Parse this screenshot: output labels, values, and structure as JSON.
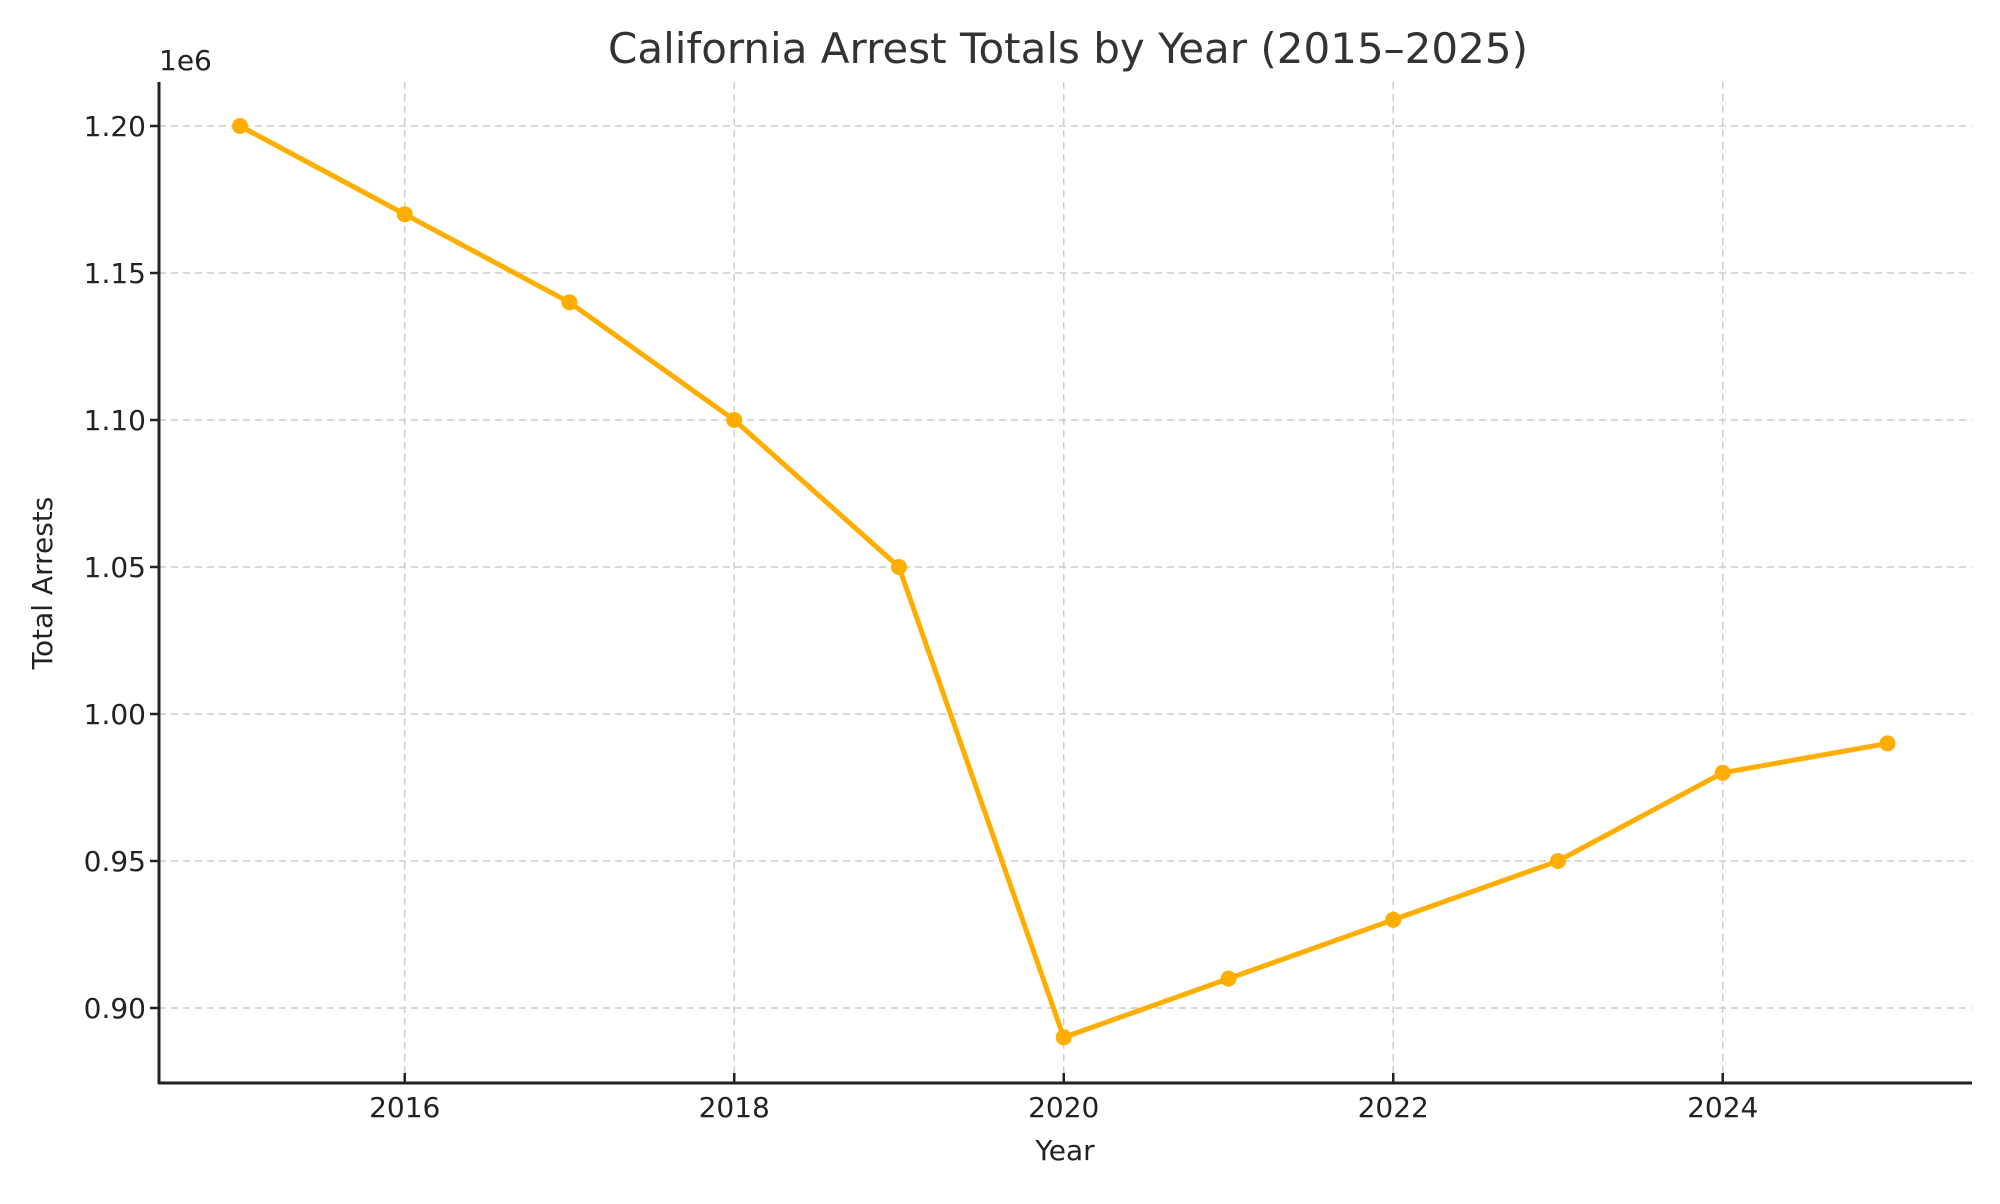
{
  "chart_data": {
    "type": "line",
    "title": "California Arrest Totals by Year (2015–2025)",
    "xlabel": "Year",
    "ylabel": "Total Arrests",
    "y_offset_label": "1e6",
    "x": [
      2015,
      2016,
      2017,
      2018,
      2019,
      2020,
      2021,
      2022,
      2023,
      2024,
      2025
    ],
    "series": [
      {
        "name": "Total Arrests",
        "values": [
          1200000,
          1170000,
          1140000,
          1100000,
          1050000,
          890000,
          910000,
          930000,
          950000,
          980000,
          990000
        ],
        "color": "#FFAE00",
        "marker": "circle"
      }
    ],
    "x_ticks": [
      2016,
      2018,
      2020,
      2022,
      2024
    ],
    "x_tick_labels": [
      "2016",
      "2018",
      "2020",
      "2022",
      "2024"
    ],
    "y_ticks": [
      0.9,
      0.95,
      1.0,
      1.05,
      1.1,
      1.15,
      1.2
    ],
    "y_tick_labels": [
      "0.90",
      "0.95",
      "1.00",
      "1.05",
      "1.10",
      "1.15",
      "1.20"
    ],
    "xlim": [
      2014.5,
      2025.5
    ],
    "ylim": [
      875000,
      1215000
    ],
    "grid": true,
    "grid_style": "dashed",
    "legend": null
  }
}
